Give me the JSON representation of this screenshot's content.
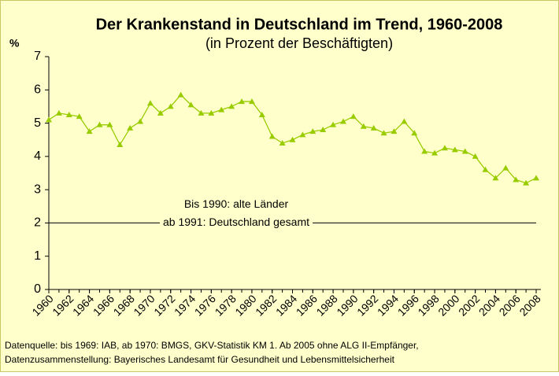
{
  "chart_data": {
    "type": "line",
    "title": "Der Krankenstand in Deutschland im Trend, 1960-2008",
    "subtitle": "(in Prozent der Beschäftigten)",
    "y_label": "%",
    "x": [
      1960,
      1961,
      1962,
      1963,
      1964,
      1965,
      1966,
      1967,
      1968,
      1969,
      1970,
      1971,
      1972,
      1973,
      1974,
      1975,
      1976,
      1977,
      1978,
      1979,
      1980,
      1981,
      1982,
      1983,
      1984,
      1985,
      1986,
      1987,
      1988,
      1989,
      1990,
      1991,
      1992,
      1993,
      1994,
      1995,
      1996,
      1997,
      1998,
      1999,
      2000,
      2001,
      2002,
      2003,
      2004,
      2005,
      2006,
      2007,
      2008
    ],
    "series": [
      {
        "name": "Krankenstand",
        "color": "#99cc00",
        "values": [
          5.1,
          5.3,
          5.25,
          5.2,
          4.75,
          4.95,
          4.95,
          4.35,
          4.85,
          5.05,
          5.6,
          5.3,
          5.5,
          5.85,
          5.55,
          5.3,
          5.3,
          5.4,
          5.5,
          5.65,
          5.65,
          5.25,
          4.6,
          4.4,
          4.5,
          4.65,
          4.75,
          4.8,
          4.95,
          5.05,
          5.2,
          4.9,
          4.85,
          4.7,
          4.75,
          5.05,
          4.7,
          4.15,
          4.1,
          4.25,
          4.2,
          4.15,
          4.0,
          3.6,
          3.35,
          3.65,
          3.3,
          3.2,
          3.35
        ]
      }
    ],
    "xlim": [
      1960,
      2008
    ],
    "xticks": [
      1960,
      1962,
      1964,
      1966,
      1968,
      1970,
      1972,
      1974,
      1976,
      1978,
      1980,
      1982,
      1984,
      1986,
      1988,
      1990,
      1992,
      1994,
      1996,
      1998,
      2000,
      2002,
      2004,
      2006,
      2008
    ],
    "ylim": [
      0,
      7
    ],
    "yticks": [
      0,
      1,
      2,
      3,
      4,
      5,
      6,
      7
    ],
    "grid": false,
    "reference_line": 2,
    "annotations": [
      "Bis 1990: alte Länder",
      "ab 1991: Deutschland gesamt"
    ],
    "source": [
      "Datenquelle: bis 1969: IAB, ab 1970: BMGS, GKV-Statistik KM 1. Ab 2005 ohne ALG II-Empfänger,",
      "Datenzusammenstellung: Bayerisches Landesamt für Gesundheit und Lebensmittelsicherheit"
    ]
  }
}
